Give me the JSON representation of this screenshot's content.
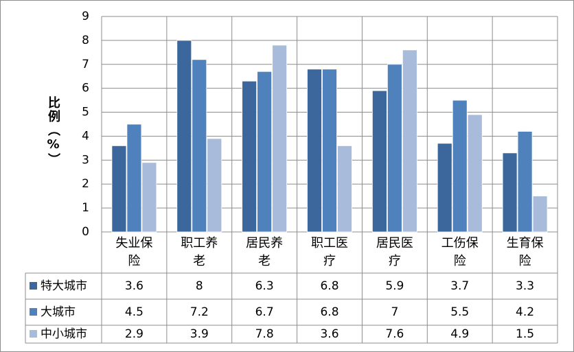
{
  "chart_data": {
    "type": "bar",
    "y_label": "比例（%）",
    "categories": [
      "失业保险",
      "职工养老",
      "居民养老",
      "职工医疗",
      "居民医疗",
      "工伤保险",
      "生育保险"
    ],
    "series": [
      {
        "name": "特大城市",
        "color": "#3b679c",
        "values": [
          3.6,
          8,
          6.3,
          6.8,
          5.9,
          3.7,
          3.3
        ]
      },
      {
        "name": "大城市",
        "color": "#4f81bd",
        "values": [
          4.5,
          7.2,
          6.7,
          6.8,
          7,
          5.5,
          4.2
        ]
      },
      {
        "name": "中小城市",
        "color": "#a8bbda",
        "values": [
          2.9,
          3.9,
          7.8,
          3.6,
          7.6,
          4.9,
          1.5
        ]
      }
    ],
    "ylim": [
      0,
      9
    ],
    "yticks": [
      0,
      1,
      2,
      3,
      4,
      5,
      6,
      7,
      8,
      9
    ],
    "grid": true,
    "data_table": true
  }
}
